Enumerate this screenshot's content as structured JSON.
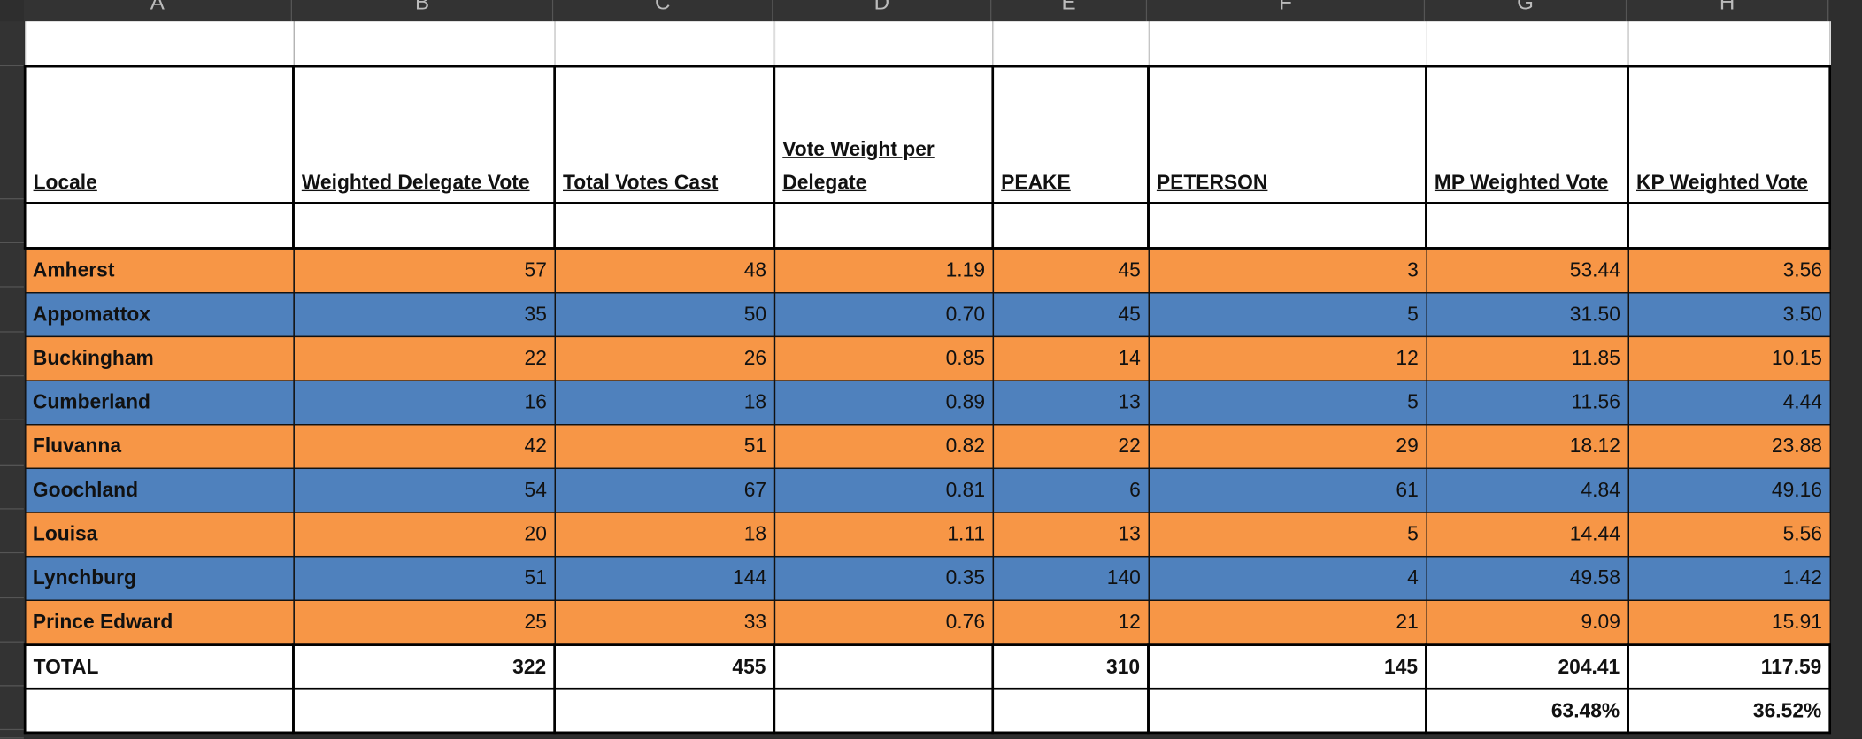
{
  "columns": [
    "A",
    "B",
    "C",
    "D",
    "E",
    "F",
    "G",
    "H"
  ],
  "colors": {
    "orange": "#f79646",
    "blue": "#4f81bd"
  },
  "headers": [
    "Locale",
    "Weighted Delegate Vote",
    "Total Votes Cast",
    "Vote Weight per Delegate",
    "PEAKE",
    "PETERSON",
    "MP Weighted Vote",
    "KP  Weighted Vote"
  ],
  "rows": [
    {
      "locale": "Amherst",
      "wdv": "57",
      "tvc": "48",
      "vwpd": "1.19",
      "peake": "45",
      "peterson": "3",
      "mp": "53.44",
      "kp": "3.56",
      "color": "orange"
    },
    {
      "locale": "Appomattox",
      "wdv": "35",
      "tvc": "50",
      "vwpd": "0.70",
      "peake": "45",
      "peterson": "5",
      "mp": "31.50",
      "kp": "3.50",
      "color": "blue"
    },
    {
      "locale": "Buckingham",
      "wdv": "22",
      "tvc": "26",
      "vwpd": "0.85",
      "peake": "14",
      "peterson": "12",
      "mp": "11.85",
      "kp": "10.15",
      "color": "orange"
    },
    {
      "locale": "Cumberland",
      "wdv": "16",
      "tvc": "18",
      "vwpd": "0.89",
      "peake": "13",
      "peterson": "5",
      "mp": "11.56",
      "kp": "4.44",
      "color": "blue"
    },
    {
      "locale": "Fluvanna",
      "wdv": "42",
      "tvc": "51",
      "vwpd": "0.82",
      "peake": "22",
      "peterson": "29",
      "mp": "18.12",
      "kp": "23.88",
      "color": "orange"
    },
    {
      "locale": "Goochland",
      "wdv": "54",
      "tvc": "67",
      "vwpd": "0.81",
      "peake": "6",
      "peterson": "61",
      "mp": "4.84",
      "kp": "49.16",
      "color": "blue"
    },
    {
      "locale": "Louisa",
      "wdv": "20",
      "tvc": "18",
      "vwpd": "1.11",
      "peake": "13",
      "peterson": "5",
      "mp": "14.44",
      "kp": "5.56",
      "color": "orange"
    },
    {
      "locale": "Lynchburg",
      "wdv": "51",
      "tvc": "144",
      "vwpd": "0.35",
      "peake": "140",
      "peterson": "4",
      "mp": "49.58",
      "kp": "1.42",
      "color": "blue"
    },
    {
      "locale": "Prince Edward",
      "wdv": "25",
      "tvc": "33",
      "vwpd": "0.76",
      "peake": "12",
      "peterson": "21",
      "mp": "9.09",
      "kp": "15.91",
      "color": "orange"
    }
  ],
  "total": {
    "locale": "TOTAL",
    "wdv": "322",
    "tvc": "455",
    "vwpd": "",
    "peake": "310",
    "peterson": "145",
    "mp": "204.41",
    "kp": "117.59"
  },
  "percent": {
    "mp": "63.48%",
    "kp": "36.52%"
  }
}
